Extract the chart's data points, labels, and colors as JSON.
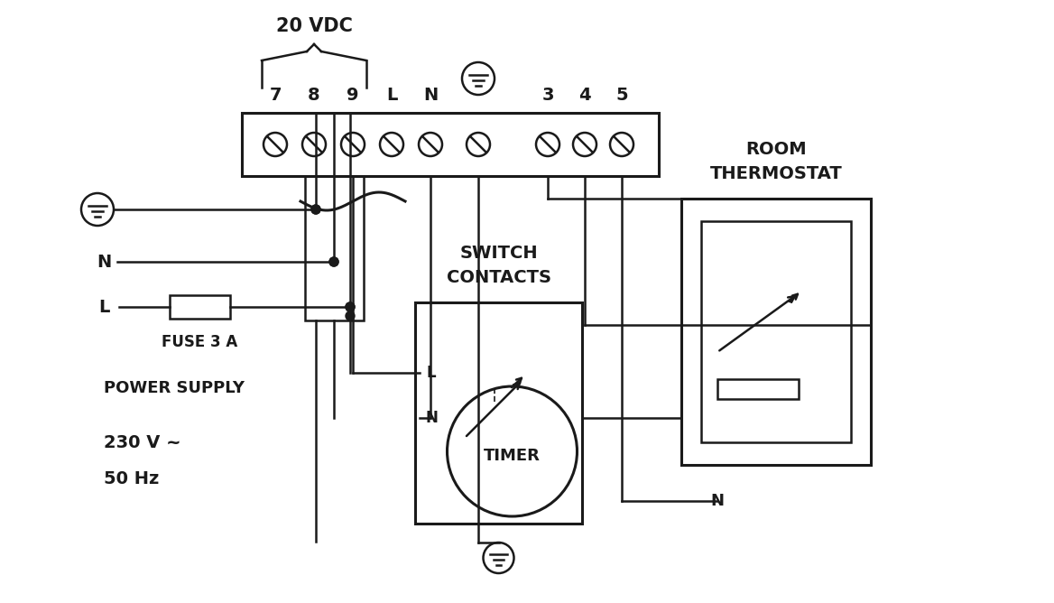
{
  "bg": "#ffffff",
  "lc": "#1a1a1a",
  "vdc_label": "20 VDC",
  "term_labels": [
    "7",
    "8",
    "9",
    "L",
    "N",
    "",
    "3",
    "4",
    "5"
  ],
  "fuse_label": "FUSE 3 A",
  "power_supply_label": "POWER SUPPLY",
  "v230_label": "230 V ~",
  "hz50_label": "50 Hz",
  "switch_label1": "SWITCH",
  "switch_label2": "CONTACTS",
  "room_label1": "ROOM",
  "room_label2": "THERMOSTAT",
  "timer_label": "TIMER",
  "L_label": "L",
  "N_label": "N",
  "N_bot_label": "N",
  "N_left_label": "N",
  "L_left_label": "L"
}
